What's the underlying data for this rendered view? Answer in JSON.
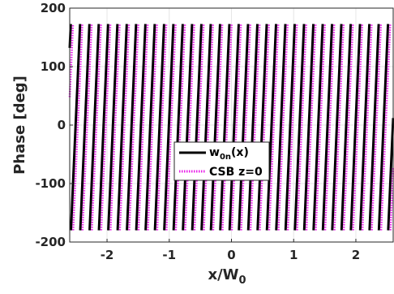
{
  "chart_data": {
    "type": "line",
    "xlabel": "x/W",
    "xlabel_sub": "0",
    "ylabel": "Phase [deg]",
    "xlim": [
      -2.6,
      2.6
    ],
    "ylim": [
      -200,
      200
    ],
    "x_ticks": [
      -2,
      -1,
      0,
      1,
      2
    ],
    "y_ticks": [
      -200,
      -100,
      0,
      100,
      200
    ],
    "x_tick_labels": [
      "-2",
      "-1",
      "0",
      "1",
      "2"
    ],
    "y_tick_labels": [
      "-200",
      "-100",
      "0",
      "100",
      "200"
    ],
    "grid": true,
    "legend_position": "center-right",
    "series": [
      {
        "name": "w",
        "name_sub": "0n",
        "name_suffix": "(x)",
        "color": "#000000",
        "style": "solid",
        "description_values": "sawtooth phase wrapping between -180 and 180 deg",
        "x": [
          -2.6,
          -2.58,
          -2.43,
          -2.28,
          -2.13,
          -1.98,
          -1.83,
          -1.68,
          -1.53,
          -1.38,
          -1.23,
          -1.08,
          -0.93,
          -0.78,
          -0.63,
          -0.48,
          -0.33,
          -0.18,
          -0.03,
          0.12,
          0.27,
          0.42,
          0.57,
          0.72,
          0.87,
          1.02,
          1.17,
          1.32,
          1.47,
          1.62,
          1.77,
          1.92,
          2.07,
          2.22,
          2.37,
          2.52,
          2.6
        ],
        "period": 0.15,
        "phase_offset": -2.58
      },
      {
        "name": "CSB z=0",
        "color": "#e81ee8",
        "style": "dotted",
        "period": 0.15,
        "phase_offset": -2.545
      }
    ]
  },
  "legend": {
    "entry1_main": "w",
    "entry1_sub": "0n",
    "entry1_suffix": "(x)",
    "entry2": "CSB z=0"
  }
}
